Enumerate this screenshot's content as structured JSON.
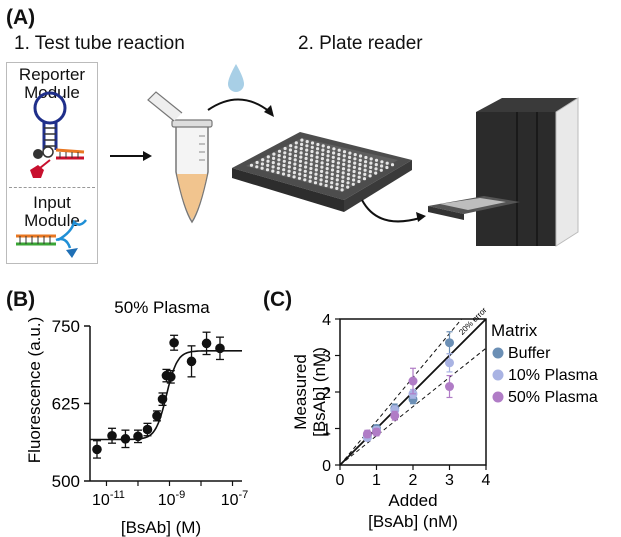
{
  "panel_a": {
    "letter": "(A)",
    "step1": "1. Test tube reaction",
    "step2": "2. Plate reader",
    "reporter_label_line1": "Reporter",
    "reporter_label_line2": "Module",
    "input_label_line1": "Input",
    "input_label_line2": "Module"
  },
  "panel_b": {
    "letter": "(B)",
    "title": "50% Plasma",
    "ylabel": "Fluorescence (a.u.)",
    "xlabel": "[BsAb] (M)",
    "ytick_labels": [
      "750",
      "625",
      "500"
    ],
    "xtick_bases": [
      "10",
      "10",
      "10"
    ],
    "xtick_exps": [
      "-11",
      "-9",
      "-7"
    ]
  },
  "panel_c": {
    "letter": "(C)",
    "ylabel_line1": "Measured",
    "ylabel_line2": "[BsAb] (nM)",
    "xlabel_line1": "Added",
    "xlabel_line2": "[BsAb] (nM)",
    "error_band_label": "20% error",
    "legend_title": "Matrix",
    "xtick_labels": [
      "0",
      "1",
      "2",
      "3",
      "4"
    ],
    "ytick_labels": [
      "0",
      "1",
      "2",
      "3",
      "4"
    ]
  },
  "colors": {
    "buffer": "#6b8fb5",
    "plasma10": "#a9b3e3",
    "plasma50": "#b07cc6",
    "tube_liquid": "#f1c48e",
    "droplet": "#a8cfe6",
    "hairpin_loop": "#1f2f8a",
    "red_strand": "#c8102e",
    "orange_strand": "#e87722",
    "blue_strand": "#1f8fd6"
  },
  "chart_data": [
    {
      "type": "scatter",
      "title": "50% Plasma",
      "xlabel": "[BsAb] (M)",
      "ylabel": "Fluorescence (a.u.)",
      "xscale": "log",
      "xlim": [
        3e-12,
        2e-07
      ],
      "ylim": [
        500,
        750
      ],
      "x": [
        5e-12,
        1.5e-11,
        4e-11,
        1e-10,
        2e-10,
        4e-10,
        6e-10,
        8e-10,
        1.1e-09,
        1.4e-09,
        5e-09,
        1.5e-08,
        4e-08
      ],
      "y": [
        551,
        573,
        568,
        572,
        583,
        605,
        632,
        670,
        668,
        723,
        693,
        722,
        714
      ],
      "yerr": [
        14,
        12,
        14,
        10,
        10,
        8,
        10,
        10,
        10,
        12,
        25,
        18,
        18
      ],
      "fit": {
        "bottom": 567,
        "top": 710,
        "ec50": 8e-10,
        "hill": 2.5
      }
    },
    {
      "type": "scatter",
      "xlabel": "Added [BsAb] (nM)",
      "ylabel": "Measured [BsAb] (nM)",
      "xlim": [
        0,
        4
      ],
      "ylim": [
        0,
        4
      ],
      "legend_title": "Matrix",
      "series": [
        {
          "name": "Buffer",
          "x": [
            0.75,
            1.0,
            1.5,
            2.0,
            3.0
          ],
          "y": [
            0.8,
            1.0,
            1.55,
            1.8,
            3.35
          ],
          "yerr": [
            0.08,
            0.1,
            0.12,
            0.12,
            0.3
          ]
        },
        {
          "name": "10% Plasma",
          "x": [
            0.75,
            1.0,
            1.5,
            2.0,
            3.0
          ],
          "y": [
            0.75,
            0.95,
            1.5,
            1.95,
            2.8
          ],
          "yerr": [
            0.08,
            0.1,
            0.12,
            0.12,
            0.25
          ]
        },
        {
          "name": "50% Plasma",
          "x": [
            0.75,
            1.0,
            1.5,
            2.0,
            3.0
          ],
          "y": [
            0.85,
            0.9,
            1.35,
            2.3,
            2.15
          ],
          "yerr": [
            0.1,
            0.1,
            0.12,
            0.35,
            0.3
          ]
        }
      ],
      "reference_lines": [
        {
          "slope": 1.0,
          "style": "solid"
        },
        {
          "slope": 0.8,
          "style": "dashed"
        },
        {
          "slope": 1.2,
          "style": "dashed"
        }
      ]
    }
  ]
}
